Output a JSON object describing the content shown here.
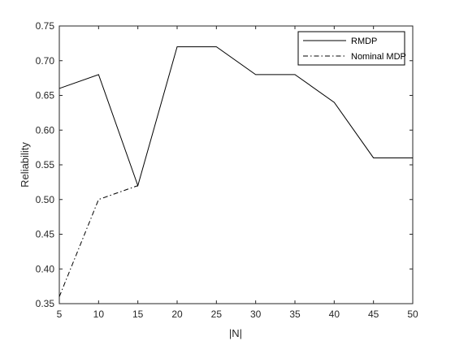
{
  "chart_data": {
    "type": "line",
    "title": "",
    "xlabel": "|N|",
    "ylabel": "Reliability",
    "x": [
      5,
      10,
      15,
      20,
      25,
      30,
      35,
      40,
      45,
      50
    ],
    "xlim": [
      5,
      50
    ],
    "ylim": [
      0.35,
      0.75
    ],
    "x_ticks": [
      "5",
      "10",
      "15",
      "20",
      "25",
      "30",
      "35",
      "40",
      "45",
      "50"
    ],
    "y_ticks": [
      "0.35",
      "0.40",
      "0.45",
      "0.50",
      "0.55",
      "0.60",
      "0.65",
      "0.70",
      "0.75"
    ],
    "grid": false,
    "legend_position": "top-right",
    "series": [
      {
        "name": "RMDP",
        "line_style": "solid",
        "color": "#000000",
        "x": [
          5,
          10,
          15,
          20,
          25,
          30,
          35,
          40,
          45,
          50
        ],
        "values": [
          0.66,
          0.68,
          0.52,
          0.72,
          0.72,
          0.68,
          0.68,
          0.64,
          0.56,
          0.56
        ]
      },
      {
        "name": "Nominal MDP",
        "line_style": "dash-dot",
        "color": "#000000",
        "x": [
          5,
          10,
          15
        ],
        "values": [
          0.36,
          0.5,
          0.52
        ]
      }
    ]
  }
}
